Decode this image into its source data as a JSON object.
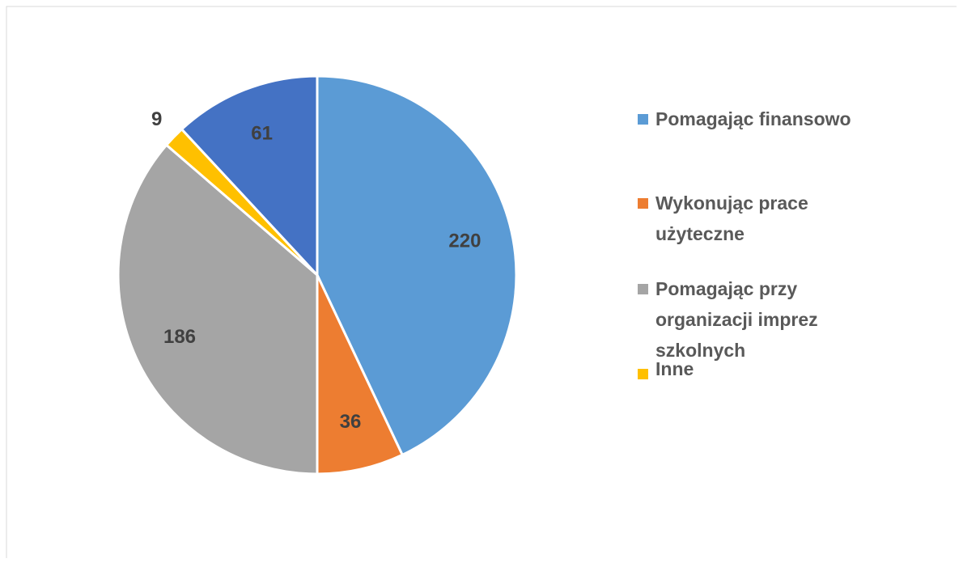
{
  "chart_data": {
    "type": "pie",
    "categories": [
      "Pomagając finansowo",
      "Wykonując prace użyteczne",
      "Pomagając przy organizacji imprez szkolnych",
      "Inne",
      null
    ],
    "values": [
      220,
      36,
      186,
      9,
      61
    ],
    "colors": [
      "#5b9bd5",
      "#ed7d31",
      "#a5a5a5",
      "#ffc000",
      "#4472c4"
    ],
    "legend": "right"
  }
}
